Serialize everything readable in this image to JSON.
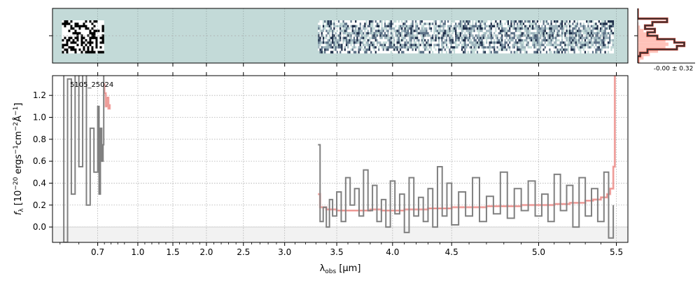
{
  "chart_data": [
    {
      "type": "heatmap",
      "panel": "2d-spectrum",
      "description_text": "",
      "x_tick_labels": [
        "0.7",
        "1.0",
        "1.5",
        "2.0",
        "2.5",
        "3.0",
        "3.5",
        "4.0",
        "4.5",
        "5.0",
        "5.5"
      ],
      "grid": true,
      "background_color": "#c3dad8",
      "segments": [
        {
          "x_start": 0.605,
          "x_end": 0.745,
          "style": "noisy-bw"
        },
        {
          "x_start": 3.32,
          "x_end": 5.48,
          "style": "blue-grey-streaks"
        }
      ]
    },
    {
      "type": "histogram",
      "panel": "noise-histogram",
      "annotation": "-0.00 ± 0.32",
      "colors": {
        "data": "#333333",
        "model": "#ffb3a8",
        "outline": "#c0392b"
      }
    },
    {
      "type": "line",
      "panel": "1d-spectrum",
      "label": "5105_25024",
      "xlabel": "λobs [μm]",
      "ylabel": "fλ [10⁻²⁰ ergs⁻¹cm⁻²Å⁻¹]",
      "xlim": [
        0.58,
        5.52
      ],
      "ylim": [
        -0.14,
        1.38
      ],
      "x_ticks": [
        0.7,
        1.0,
        1.5,
        2.0,
        2.5,
        3.0,
        3.5,
        4.0,
        4.5,
        5.0,
        5.5
      ],
      "x_tick_labels": [
        "0.7",
        "1.0",
        "1.5",
        "2.0",
        "2.5",
        "3.0",
        "3.5",
        "4.0",
        "4.5",
        "5.0",
        "5.5"
      ],
      "y_ticks": [
        0.0,
        0.2,
        0.4,
        0.6,
        0.8,
        1.0,
        1.2
      ],
      "y_tick_labels": [
        "0.0",
        "0.2",
        "0.4",
        "0.6",
        "0.8",
        "1.0",
        "1.2"
      ],
      "grid": true,
      "colors": {
        "flux": "#808080",
        "model": "#f7a9a8",
        "model_dark": "#c0392b"
      },
      "series": [
        {
          "role": "flux",
          "x": [
            0.6,
            0.61,
            0.62,
            0.63,
            0.64,
            0.65,
            0.66,
            0.67,
            0.68,
            0.69,
            0.7,
            0.71,
            0.72,
            0.73,
            0.74,
            0.745
          ],
          "y": [
            1.4,
            -0.14,
            1.35,
            0.3,
            1.4,
            0.55,
            1.4,
            0.2,
            0.9,
            0.5,
            1.1,
            0.3,
            0.9,
            0.6,
            0.75,
            1.4
          ]
        },
        {
          "role": "flux",
          "x": [
            3.32,
            3.34,
            3.37,
            3.4,
            3.43,
            3.46,
            3.5,
            3.54,
            3.58,
            3.62,
            3.66,
            3.7,
            3.74,
            3.78,
            3.82,
            3.86,
            3.9,
            3.94,
            3.98,
            4.02,
            4.06,
            4.1,
            4.14,
            4.18,
            4.22,
            4.26,
            4.3,
            4.34,
            4.38,
            4.42,
            4.46,
            4.5,
            4.54,
            4.58,
            4.62,
            4.66,
            4.7,
            4.74,
            4.78,
            4.82,
            4.86,
            4.9,
            4.94,
            4.98,
            5.02,
            5.06,
            5.1,
            5.14,
            5.18,
            5.22,
            5.26,
            5.3,
            5.34,
            5.38,
            5.42,
            5.45,
            5.48
          ],
          "y": [
            0.75,
            0.05,
            0.18,
            0.0,
            0.25,
            0.1,
            0.32,
            0.05,
            0.45,
            0.2,
            0.35,
            0.1,
            0.52,
            0.15,
            0.38,
            0.05,
            0.25,
            0.0,
            0.42,
            0.12,
            0.3,
            -0.05,
            0.45,
            0.1,
            0.27,
            0.05,
            0.35,
            0.0,
            0.55,
            0.1,
            0.4,
            0.02,
            0.32,
            0.1,
            0.45,
            0.05,
            0.28,
            0.12,
            0.5,
            0.08,
            0.35,
            0.15,
            0.42,
            0.1,
            0.3,
            0.05,
            0.48,
            0.15,
            0.38,
            0.0,
            0.45,
            0.1,
            0.35,
            0.05,
            0.5,
            -0.1,
            0.2
          ]
        },
        {
          "role": "model",
          "x": [
            0.745,
            0.75,
            0.76,
            0.77,
            0.78,
            0.79
          ],
          "y": [
            1.3,
            1.22,
            1.1,
            1.18,
            1.08,
            1.12
          ]
        },
        {
          "role": "model",
          "x": [
            3.32,
            3.34,
            3.4,
            3.5,
            3.6,
            3.7,
            3.8,
            3.9,
            4.0,
            4.1,
            4.2,
            4.3,
            4.4,
            4.5,
            4.6,
            4.7,
            4.8,
            4.9,
            5.0,
            5.1,
            5.2,
            5.3,
            5.35,
            5.4,
            5.44,
            5.46,
            5.48,
            5.49
          ],
          "y": [
            0.3,
            0.18,
            0.16,
            0.15,
            0.15,
            0.15,
            0.16,
            0.15,
            0.15,
            0.16,
            0.16,
            0.17,
            0.17,
            0.18,
            0.18,
            0.19,
            0.19,
            0.2,
            0.2,
            0.21,
            0.22,
            0.24,
            0.25,
            0.27,
            0.3,
            0.35,
            0.55,
            1.38
          ]
        }
      ]
    }
  ]
}
